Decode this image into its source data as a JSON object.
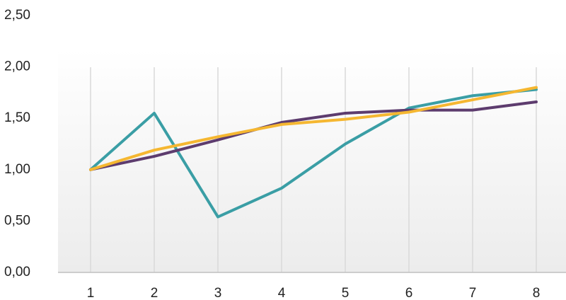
{
  "chart_data": {
    "type": "line",
    "categories": [
      "1",
      "2",
      "3",
      "4",
      "5",
      "6",
      "7",
      "8"
    ],
    "series": [
      {
        "color": "#3a9ea5",
        "values": [
          1.0,
          1.55,
          0.54,
          0.82,
          1.25,
          1.6,
          1.72,
          1.78
        ]
      },
      {
        "color": "#5d3c6e",
        "values": [
          1.0,
          1.13,
          1.29,
          1.46,
          1.55,
          1.58,
          1.58,
          1.66
        ]
      },
      {
        "color": "#f5b731",
        "values": [
          1.0,
          1.19,
          1.32,
          1.44,
          1.49,
          1.56,
          1.68,
          1.8
        ]
      }
    ],
    "ylim": [
      0,
      2.5
    ],
    "yticks": [
      {
        "value": 0,
        "label": "0,00"
      },
      {
        "value": 0.5,
        "label": "0,50"
      },
      {
        "value": 1,
        "label": "1,00"
      },
      {
        "value": 1.5,
        "label": "1,50"
      },
      {
        "value": 2,
        "label": "2,00"
      },
      {
        "value": 2.5,
        "label": "2,50"
      }
    ],
    "grid": true
  }
}
